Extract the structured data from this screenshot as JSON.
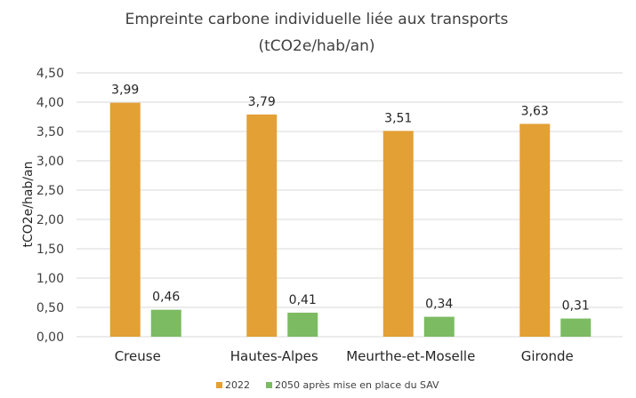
{
  "chart_data": {
    "type": "bar",
    "title": [
      "Empreinte carbone individuelle liée aux transports",
      "(tCO2e/hab/an)"
    ],
    "ylabel": "tCO2e/hab/an",
    "xlabel": "",
    "ylim": [
      0,
      4.5
    ],
    "yticks": [
      "0,00",
      "0,50",
      "1,00",
      "1,50",
      "2,00",
      "2,50",
      "3,00",
      "3,50",
      "4,00",
      "4,50"
    ],
    "categories": [
      "Creuse",
      "Hautes-Alpes",
      "Meurthe-et-Moselle",
      "Gironde"
    ],
    "series": [
      {
        "name": "2022",
        "color": "#E3A035",
        "values": [
          3.99,
          3.79,
          3.51,
          3.63
        ],
        "labels": [
          "3,99",
          "3,79",
          "3,51",
          "3,63"
        ]
      },
      {
        "name": "2050 après mise en place du SAV",
        "color": "#7CBB62",
        "values": [
          0.46,
          0.41,
          0.34,
          0.31
        ],
        "labels": [
          "0,46",
          "0,41",
          "0,34",
          "0,31"
        ]
      }
    ],
    "grid": true,
    "legend": "bottom"
  }
}
